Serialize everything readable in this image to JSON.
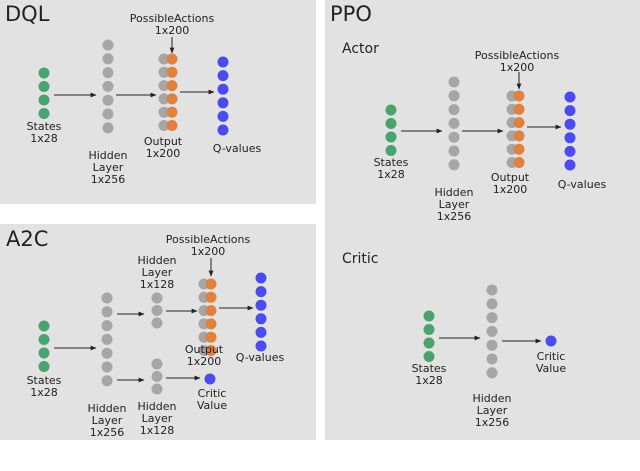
{
  "colors": {
    "state": "#4aa36e",
    "hidden": "#a6a6a6",
    "output": "#e0813f",
    "qvalue": "#4b4bf0",
    "panel": "#e2e2e2",
    "arrow": "#222222"
  },
  "dql": {
    "title": "DQL",
    "states": "States\n1x28",
    "hidden": "Hidden\nLayer\n1x256",
    "possible": "PossibleActions\n1x200",
    "output": "Output\n1x200",
    "qvalues": "Q-values"
  },
  "a2c": {
    "title": "A2C",
    "states": "States\n1x28",
    "hidden": "Hidden\nLayer\n1x256",
    "hidden_top": "Hidden\nLayer\n1x128",
    "hidden_bottom": "Hidden\nLayer\n1x128",
    "possible": "PossibleActions\n1x200",
    "output": "Output\n1x200",
    "qvalues": "Q-values",
    "critic": "Critic\nValue"
  },
  "ppo": {
    "title": "PPO",
    "actor": {
      "title": "Actor",
      "states": "States\n1x28",
      "hidden": "Hidden\nLayer\n1x256",
      "possible": "PossibleActions\n1x200",
      "output": "Output\n1x200",
      "qvalues": "Q-values"
    },
    "critic": {
      "title": "Critic",
      "states": "States\n1x28",
      "hidden": "Hidden\nLayer\n1x256",
      "value": "Critic\nValue"
    }
  }
}
